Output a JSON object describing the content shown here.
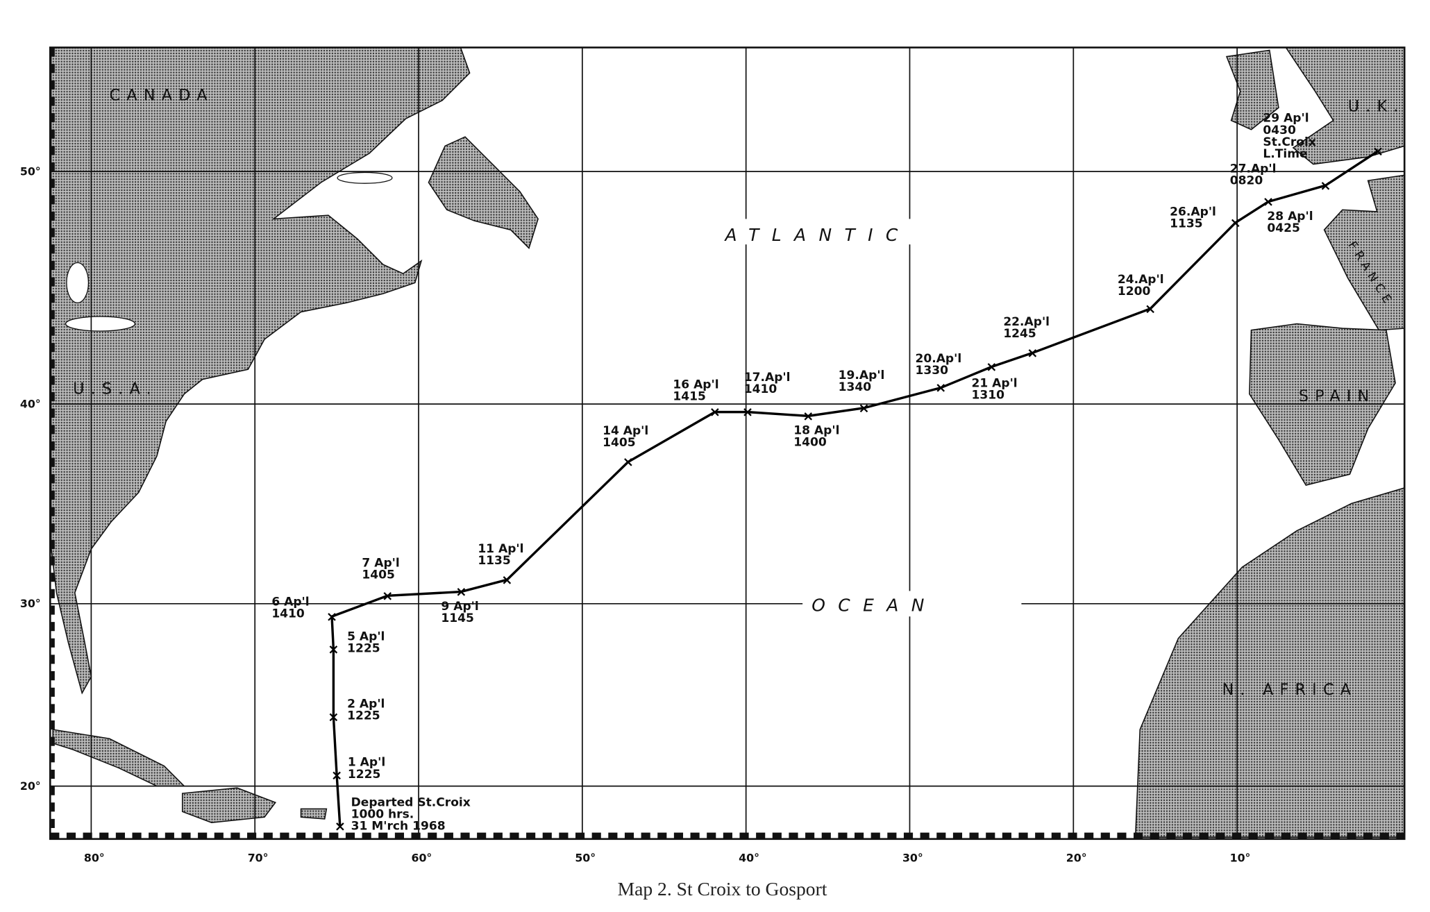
{
  "caption": "Map 2. St Croix to Gosport",
  "regions": {
    "canada": "CANADA",
    "usa": "U.S.A.",
    "atlantic": "ATLANTIC",
    "ocean": "OCEAN",
    "uk": "U.K.",
    "france": "FRANCE",
    "spain": "SPAIN",
    "africa": "N. AFRICA"
  },
  "lat_labels": [
    "50°",
    "40°",
    "30°",
    "20°"
  ],
  "lon_labels": [
    "80°",
    "70°",
    "60°",
    "50°",
    "40°",
    "30°",
    "20°",
    "10°"
  ],
  "grid": {
    "lats": [
      50,
      40,
      30,
      20
    ],
    "lons": [
      80,
      70,
      60,
      50,
      40,
      30,
      20,
      10
    ]
  },
  "colors": {
    "land": "#8c8c8c",
    "track": "#000000",
    "sea": "#ffffff"
  },
  "track": [
    {
      "lon": 64.8,
      "lat": 17.8,
      "lines": [
        "Departed St.Croix",
        "1000 hrs.",
        "31 M'rch 1968"
      ]
    },
    {
      "lon": 65.0,
      "lat": 20.6,
      "lines": [
        "1 Ap'l",
        "1225"
      ]
    },
    {
      "lon": 65.2,
      "lat": 23.8,
      "lines": [
        "2 Ap'l",
        "1225"
      ]
    },
    {
      "lon": 65.2,
      "lat": 27.5,
      "lines": [
        "5 Ap'l",
        "1225"
      ]
    },
    {
      "lon": 65.3,
      "lat": 29.3,
      "lines": [
        "6 Ap'l",
        "1410"
      ]
    },
    {
      "lon": 61.9,
      "lat": 30.4,
      "lines": [
        "7 Ap'l",
        "1405"
      ]
    },
    {
      "lon": 57.4,
      "lat": 30.6,
      "lines": [
        "9 Ap'l",
        "1145"
      ]
    },
    {
      "lon": 54.6,
      "lat": 31.2,
      "lines": [
        "11 Ap'l",
        "1135"
      ]
    },
    {
      "lon": 47.2,
      "lat": 37.1,
      "lines": [
        "14 Ap'l",
        "1405"
      ]
    },
    {
      "lon": 41.9,
      "lat": 39.6,
      "lines": [
        "16 Ap'l",
        "1415"
      ]
    },
    {
      "lon": 39.9,
      "lat": 39.6,
      "lines": [
        "17.Ap'l",
        "1410"
      ]
    },
    {
      "lon": 36.2,
      "lat": 39.4,
      "lines": [
        "18 Ap'l",
        "1400"
      ]
    },
    {
      "lon": 32.8,
      "lat": 39.8,
      "lines": [
        "19.Ap'l",
        "1340"
      ]
    },
    {
      "lon": 28.1,
      "lat": 40.7,
      "lines": [
        "20.Ap'l",
        "1330"
      ]
    },
    {
      "lon": 25.0,
      "lat": 41.6,
      "lines": [
        "21 Ap'l",
        "1310"
      ]
    },
    {
      "lon": 22.5,
      "lat": 42.2,
      "lines": [
        "22.Ap'l",
        "1245"
      ]
    },
    {
      "lon": 15.3,
      "lat": 44.1,
      "lines": [
        "24.Ap'l",
        "1200"
      ]
    },
    {
      "lon": 10.1,
      "lat": 47.8,
      "lines": [
        "26.Ap'l",
        "1135"
      ]
    },
    {
      "lon": 8.1,
      "lat": 48.7,
      "lines": [
        "27.Ap'l",
        "0820"
      ]
    },
    {
      "lon": 4.6,
      "lat": 49.4,
      "lines": [
        "28 Ap'l",
        "0425"
      ]
    },
    {
      "lon": 1.4,
      "lat": 50.9,
      "lines": [
        "29 Ap'l",
        "0430",
        "St.Croix",
        "L.Time"
      ]
    }
  ]
}
